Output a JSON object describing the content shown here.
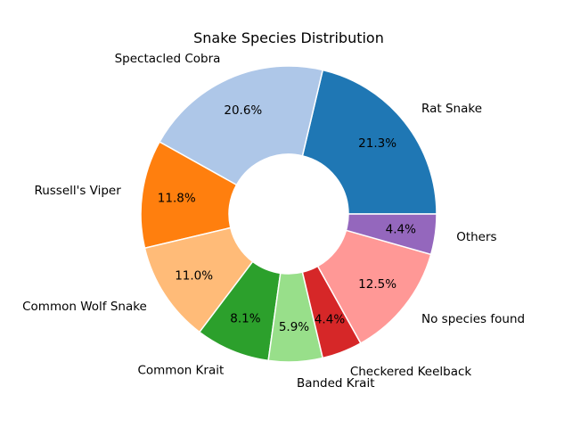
{
  "chart_data": {
    "type": "pie",
    "variant": "donut",
    "title": "Snake Species Distribution",
    "categories": [
      "Rat Snake",
      "Spectacled Cobra",
      "Russell's Viper",
      "Common Wolf Snake",
      "Common Krait",
      "Banded Krait",
      "Checkered Keelback",
      "No species found",
      "Others"
    ],
    "values": [
      21.3,
      20.6,
      11.8,
      11.0,
      8.1,
      5.9,
      4.4,
      12.5,
      4.4
    ],
    "percent_labels": [
      "21.3%",
      "20.6%",
      "11.8%",
      "11.0%",
      "8.1%",
      "5.9%",
      "4.4%",
      "12.5%",
      "4.4%"
    ],
    "colors": [
      "#1f77b4",
      "#aec7e8",
      "#ff7f0e",
      "#ffbb78",
      "#2ca02c",
      "#98df8a",
      "#d62728",
      "#ff9896",
      "#9467bd"
    ],
    "start_angle_deg": 0,
    "direction": "counterclockwise",
    "legend": "none"
  }
}
